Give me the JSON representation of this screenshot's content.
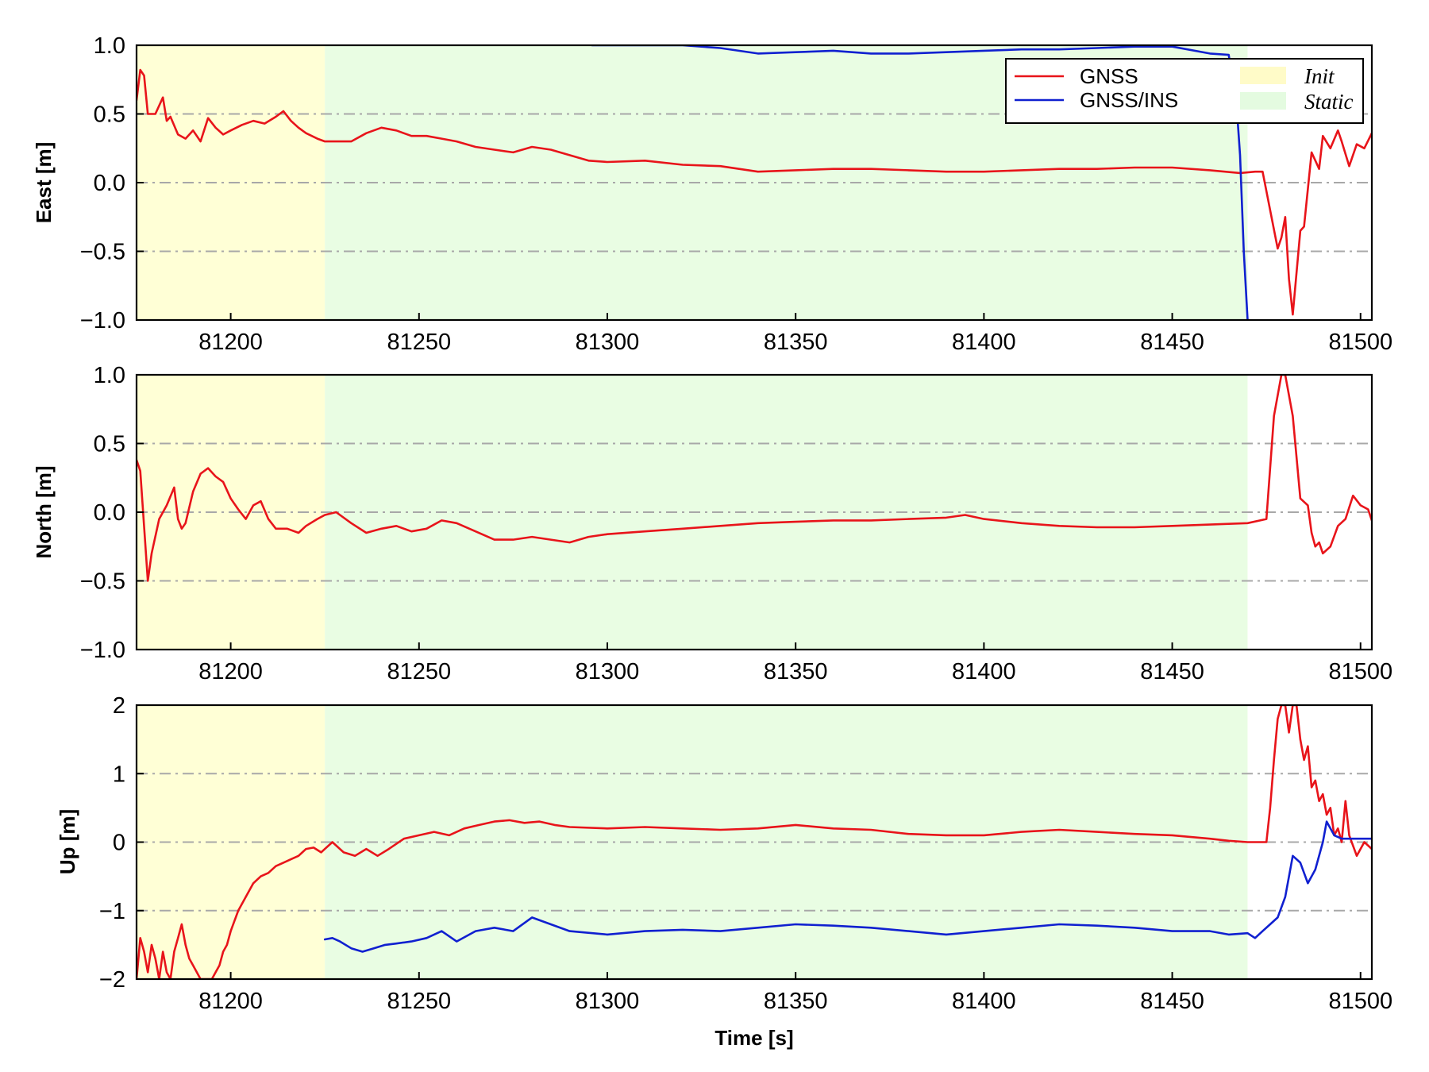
{
  "chart_data": [
    {
      "type": "line",
      "panel": "east",
      "ylabel": "East [m]",
      "xlim": [
        81175,
        81503
      ],
      "ylim": [
        -1.0,
        1.0
      ],
      "xticks": [
        81200,
        81250,
        81300,
        81350,
        81400,
        81450,
        81500
      ],
      "xtick_labels": [
        "81200",
        "81250",
        "81300",
        "81350",
        "81400",
        "81450",
        "81500"
      ],
      "yticks": [
        -1.0,
        -0.5,
        0.0,
        0.5,
        1.0
      ],
      "ytick_labels": [
        "−1.0",
        "−0.5",
        "0.0",
        "0.5",
        "1.0"
      ],
      "grid": "horizontal dash-dot",
      "shaded_regions": [
        {
          "name": "Init",
          "x": [
            81175,
            81225
          ],
          "color": "#ffffd6"
        },
        {
          "name": "Static",
          "x": [
            81225,
            81470
          ],
          "color": "#e9fde3"
        }
      ],
      "series": [
        {
          "name": "GNSS",
          "color": "#e8141a",
          "x": [
            81175,
            81176,
            81177,
            81178,
            81180,
            81182,
            81183,
            81184,
            81186,
            81188,
            81190,
            81192,
            81194,
            81196,
            81198,
            81200,
            81203,
            81206,
            81209,
            81212,
            81214,
            81216,
            81218,
            81220,
            81223,
            81225,
            81228,
            81232,
            81236,
            81240,
            81244,
            81248,
            81252,
            81256,
            81260,
            81265,
            81270,
            81275,
            81280,
            81285,
            81290,
            81295,
            81300,
            81310,
            81320,
            81330,
            81340,
            81350,
            81360,
            81370,
            81380,
            81390,
            81400,
            81410,
            81420,
            81430,
            81440,
            81450,
            81460,
            81468,
            81472,
            81474,
            81476,
            81478,
            81479,
            81480,
            81481,
            81482,
            81484,
            81485,
            81487,
            81489,
            81490,
            81492,
            81494,
            81495,
            81497,
            81499,
            81501,
            81503
          ],
          "y": [
            0.6,
            0.82,
            0.78,
            0.5,
            0.5,
            0.62,
            0.45,
            0.48,
            0.35,
            0.32,
            0.38,
            0.3,
            0.47,
            0.4,
            0.35,
            0.38,
            0.42,
            0.45,
            0.43,
            0.48,
            0.52,
            0.45,
            0.4,
            0.36,
            0.32,
            0.3,
            0.3,
            0.3,
            0.36,
            0.4,
            0.38,
            0.34,
            0.34,
            0.32,
            0.3,
            0.26,
            0.24,
            0.22,
            0.26,
            0.24,
            0.2,
            0.16,
            0.15,
            0.16,
            0.13,
            0.12,
            0.08,
            0.09,
            0.1,
            0.1,
            0.09,
            0.08,
            0.08,
            0.09,
            0.1,
            0.1,
            0.11,
            0.11,
            0.09,
            0.07,
            0.08,
            0.08,
            -0.2,
            -0.48,
            -0.4,
            -0.25,
            -0.7,
            -0.96,
            -0.35,
            -0.32,
            0.22,
            0.1,
            0.34,
            0.25,
            0.38,
            0.3,
            0.12,
            0.28,
            0.25,
            0.36
          ]
        },
        {
          "name": "GNSS/INS",
          "color": "#1020d0",
          "x": [
            81296,
            81300,
            81320,
            81330,
            81340,
            81350,
            81360,
            81370,
            81380,
            81390,
            81400,
            81410,
            81420,
            81430,
            81440,
            81450,
            81460,
            81465,
            81467,
            81468,
            81469,
            81470
          ],
          "y": [
            1.0,
            1.0,
            1.0,
            0.98,
            0.94,
            0.95,
            0.96,
            0.94,
            0.94,
            0.95,
            0.96,
            0.97,
            0.97,
            0.98,
            0.99,
            0.99,
            0.94,
            0.93,
            0.6,
            0.2,
            -0.5,
            -1.0
          ]
        }
      ],
      "legend": {
        "placement": "top-right",
        "entries": [
          {
            "label": "GNSS",
            "kind": "line",
            "color": "#e8141a"
          },
          {
            "label": "GNSS/INS",
            "kind": "line",
            "color": "#1020d0"
          },
          {
            "label": "Init",
            "kind": "patch",
            "color": "#fffbc8"
          },
          {
            "label": "Static",
            "kind": "patch",
            "color": "#e4fbe0"
          }
        ]
      }
    },
    {
      "type": "line",
      "panel": "north",
      "ylabel": "North [m]",
      "xlim": [
        81175,
        81503
      ],
      "ylim": [
        -1.0,
        1.0
      ],
      "xticks": [
        81200,
        81250,
        81300,
        81350,
        81400,
        81450,
        81500
      ],
      "xtick_labels": [
        "81200",
        "81250",
        "81300",
        "81350",
        "81400",
        "81450",
        "81500"
      ],
      "yticks": [
        -1.0,
        -0.5,
        0.0,
        0.5,
        1.0
      ],
      "ytick_labels": [
        "−1.0",
        "−0.5",
        "0.0",
        "0.5",
        "1.0"
      ],
      "grid": "horizontal dash-dot",
      "shaded_regions": [
        {
          "name": "Init",
          "x": [
            81175,
            81225
          ],
          "color": "#ffffd6"
        },
        {
          "name": "Static",
          "x": [
            81225,
            81470
          ],
          "color": "#e9fde3"
        }
      ],
      "series": [
        {
          "name": "GNSS",
          "color": "#e8141a",
          "x": [
            81175,
            81176,
            81178,
            81179,
            81181,
            81183,
            81185,
            81186,
            81187,
            81188,
            81190,
            81192,
            81194,
            81196,
            81198,
            81200,
            81202,
            81204,
            81206,
            81208,
            81210,
            81212,
            81215,
            81218,
            81220,
            81223,
            81225,
            81228,
            81232,
            81236,
            81240,
            81244,
            81248,
            81252,
            81256,
            81260,
            81265,
            81270,
            81275,
            81280,
            81285,
            81290,
            81295,
            81300,
            81310,
            81320,
            81330,
            81340,
            81350,
            81360,
            81370,
            81380,
            81390,
            81395,
            81400,
            81410,
            81420,
            81430,
            81440,
            81450,
            81460,
            81470,
            81475,
            81477,
            81479,
            81480,
            81482,
            81484,
            81486,
            81487,
            81488,
            81489,
            81490,
            81492,
            81494,
            81496,
            81498,
            81500,
            81502,
            81503
          ],
          "y": [
            0.38,
            0.3,
            -0.5,
            -0.3,
            -0.05,
            0.05,
            0.18,
            -0.05,
            -0.12,
            -0.08,
            0.15,
            0.28,
            0.32,
            0.26,
            0.22,
            0.1,
            0.02,
            -0.05,
            0.05,
            0.08,
            -0.05,
            -0.12,
            -0.12,
            -0.15,
            -0.1,
            -0.05,
            -0.02,
            0.0,
            -0.08,
            -0.15,
            -0.12,
            -0.1,
            -0.14,
            -0.12,
            -0.06,
            -0.08,
            -0.14,
            -0.2,
            -0.2,
            -0.18,
            -0.2,
            -0.22,
            -0.18,
            -0.16,
            -0.14,
            -0.12,
            -0.1,
            -0.08,
            -0.07,
            -0.06,
            -0.06,
            -0.05,
            -0.04,
            -0.02,
            -0.05,
            -0.08,
            -0.1,
            -0.11,
            -0.11,
            -0.1,
            -0.09,
            -0.08,
            -0.05,
            0.7,
            1.0,
            1.0,
            0.7,
            0.1,
            0.05,
            -0.15,
            -0.25,
            -0.22,
            -0.3,
            -0.25,
            -0.1,
            -0.05,
            0.12,
            0.05,
            0.02,
            -0.06
          ]
        }
      ]
    },
    {
      "type": "line",
      "panel": "up",
      "ylabel": "Up [m]",
      "xlabel": "Time [s]",
      "xlim": [
        81175,
        81503
      ],
      "ylim": [
        -2,
        2
      ],
      "xticks": [
        81200,
        81250,
        81300,
        81350,
        81400,
        81450,
        81500
      ],
      "xtick_labels": [
        "81200",
        "81250",
        "81300",
        "81350",
        "81400",
        "81450",
        "81500"
      ],
      "yticks": [
        -2,
        -1,
        0,
        1,
        2
      ],
      "ytick_labels": [
        "−2",
        "−1",
        "0",
        "1",
        "2"
      ],
      "grid": "horizontal dash-dot",
      "shaded_regions": [
        {
          "name": "Init",
          "x": [
            81175,
            81225
          ],
          "color": "#ffffd6"
        },
        {
          "name": "Static",
          "x": [
            81225,
            81470
          ],
          "color": "#e9fde3"
        }
      ],
      "series": [
        {
          "name": "GNSS",
          "color": "#e8141a",
          "x": [
            81175,
            81176,
            81177,
            81178,
            81179,
            81180,
            81181,
            81182,
            81183,
            81184,
            81185,
            81186,
            81187,
            81188,
            81189,
            81190,
            81191,
            81192,
            81193,
            81194,
            81195,
            81196,
            81197,
            81198,
            81199,
            81200,
            81202,
            81204,
            81206,
            81208,
            81210,
            81212,
            81214,
            81216,
            81218,
            81220,
            81222,
            81224,
            81225,
            81227,
            81230,
            81233,
            81236,
            81239,
            81242,
            81246,
            81250,
            81254,
            81258,
            81262,
            81266,
            81270,
            81274,
            81278,
            81282,
            81286,
            81290,
            81300,
            81310,
            81320,
            81330,
            81340,
            81350,
            81360,
            81370,
            81380,
            81390,
            81400,
            81410,
            81420,
            81430,
            81440,
            81450,
            81460,
            81465,
            81470,
            81474,
            81475,
            81476,
            81477,
            81478,
            81479,
            81480,
            81481,
            81482,
            81483,
            81484,
            81485,
            81486,
            81487,
            81488,
            81489,
            81490,
            81491,
            81492,
            81493,
            81494,
            81495,
            81496,
            81497,
            81499,
            81501,
            81503
          ],
          "y": [
            -2.0,
            -1.4,
            -1.6,
            -1.9,
            -1.5,
            -1.7,
            -2.0,
            -1.6,
            -1.9,
            -2.0,
            -1.6,
            -1.4,
            -1.2,
            -1.5,
            -1.7,
            -1.8,
            -1.9,
            -2.0,
            -2.0,
            -2.0,
            -2.0,
            -1.9,
            -1.8,
            -1.6,
            -1.5,
            -1.3,
            -1.0,
            -0.8,
            -0.6,
            -0.5,
            -0.45,
            -0.35,
            -0.3,
            -0.25,
            -0.2,
            -0.1,
            -0.08,
            -0.15,
            -0.1,
            0.0,
            -0.15,
            -0.2,
            -0.1,
            -0.2,
            -0.1,
            0.05,
            0.1,
            0.15,
            0.1,
            0.2,
            0.25,
            0.3,
            0.32,
            0.28,
            0.3,
            0.25,
            0.22,
            0.2,
            0.22,
            0.2,
            0.18,
            0.2,
            0.25,
            0.2,
            0.18,
            0.12,
            0.1,
            0.1,
            0.15,
            0.18,
            0.15,
            0.12,
            0.1,
            0.05,
            0.02,
            0.0,
            0.0,
            0.0,
            0.5,
            1.2,
            1.8,
            2.0,
            2.0,
            1.6,
            2.0,
            2.0,
            1.5,
            1.2,
            1.4,
            0.8,
            0.9,
            0.6,
            0.7,
            0.4,
            0.5,
            0.1,
            0.2,
            0.0,
            0.6,
            0.1,
            -0.2,
            0.0,
            -0.1
          ]
        },
        {
          "name": "GNSS/INS",
          "color": "#1020d0",
          "x": [
            81225,
            81227,
            81229,
            81232,
            81235,
            81238,
            81241,
            81244,
            81248,
            81252,
            81256,
            81260,
            81265,
            81270,
            81275,
            81280,
            81285,
            81290,
            81300,
            81310,
            81320,
            81330,
            81340,
            81350,
            81360,
            81370,
            81380,
            81390,
            81400,
            81410,
            81420,
            81430,
            81440,
            81450,
            81460,
            81465,
            81470,
            81472,
            81474,
            81476,
            81478,
            81480,
            81482,
            81484,
            81486,
            81488,
            81490,
            81491,
            81493,
            81495,
            81497,
            81500,
            81503
          ],
          "y": [
            -1.42,
            -1.4,
            -1.45,
            -1.55,
            -1.6,
            -1.55,
            -1.5,
            -1.48,
            -1.45,
            -1.4,
            -1.3,
            -1.45,
            -1.3,
            -1.25,
            -1.3,
            -1.1,
            -1.2,
            -1.3,
            -1.35,
            -1.3,
            -1.28,
            -1.3,
            -1.25,
            -1.2,
            -1.22,
            -1.25,
            -1.3,
            -1.35,
            -1.3,
            -1.25,
            -1.2,
            -1.22,
            -1.25,
            -1.3,
            -1.3,
            -1.35,
            -1.33,
            -1.4,
            -1.3,
            -1.2,
            -1.1,
            -0.8,
            -0.2,
            -0.3,
            -0.6,
            -0.4,
            0.0,
            0.3,
            0.1,
            0.05,
            0.05,
            0.05,
            0.05
          ]
        }
      ]
    }
  ]
}
